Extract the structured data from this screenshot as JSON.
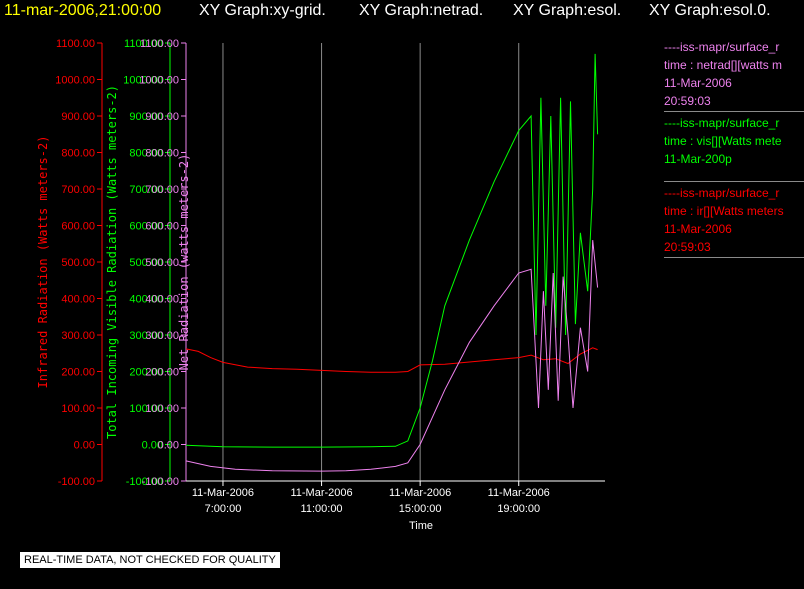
{
  "header": {
    "timestamp": "11-mar-2006,21:00:00",
    "graphs": [
      "XY Graph:xy-grid.",
      "XY Graph:netrad.",
      "XY Graph:esol.",
      "XY Graph:esol.0."
    ]
  },
  "colors": {
    "background": "#000000",
    "timestamp": "#ffff00",
    "titles": "#ffffff",
    "ir": "#ff0000",
    "vis": "#00ff00",
    "net": "#ee82ee",
    "grid": "#8a8a8a"
  },
  "chart_data": {
    "type": "line",
    "xlabel": "Time",
    "x_ticks": [
      [
        "11-Mar-2006",
        "7:00:00"
      ],
      [
        "11-Mar-2006",
        "11:00:00"
      ],
      [
        "11-Mar-2006",
        "15:00:00"
      ],
      [
        "11-Mar-2006",
        "19:00:00"
      ]
    ],
    "x_unit": "hours since 11-Mar-2006 00:00",
    "x_tick_hours": [
      7,
      11,
      15,
      19
    ],
    "xlim": [
      5.5,
      22.5
    ],
    "y_ticks": [
      "-100.00",
      "0.00",
      "100.00",
      "200.00",
      "300.00",
      "400.00",
      "500.00",
      "600.00",
      "700.00",
      "800.00",
      "900.00",
      "1000.00",
      "1100.00"
    ],
    "ylim": [
      -100,
      1100
    ],
    "grid": true,
    "axes": [
      {
        "label": "Infrared Radiation (Watts meters-2)",
        "color": "ir"
      },
      {
        "label": "Total Incoming Visible Radiation (Watts meters-2)",
        "color": "vis"
      },
      {
        "label": "Net Radiation (watts meters-2)",
        "color": "net"
      }
    ],
    "series": [
      {
        "name": "ir",
        "color": "ir",
        "points": [
          [
            5.5,
            262
          ],
          [
            6,
            255
          ],
          [
            6.5,
            238
          ],
          [
            7,
            225
          ],
          [
            8,
            212
          ],
          [
            9,
            208
          ],
          [
            10,
            206
          ],
          [
            11,
            203
          ],
          [
            12,
            200
          ],
          [
            13,
            198
          ],
          [
            14,
            198
          ],
          [
            14.5,
            200
          ],
          [
            15,
            218
          ],
          [
            16,
            220
          ],
          [
            17,
            226
          ],
          [
            18,
            232
          ],
          [
            19,
            238
          ],
          [
            19.5,
            245
          ],
          [
            20,
            232
          ],
          [
            20.5,
            235
          ],
          [
            21,
            222
          ],
          [
            21.5,
            248
          ],
          [
            22,
            265
          ],
          [
            22.2,
            260
          ]
        ]
      },
      {
        "name": "vis",
        "color": "vis",
        "points": [
          [
            5.5,
            -2
          ],
          [
            7,
            -6
          ],
          [
            9,
            -7
          ],
          [
            11,
            -7
          ],
          [
            13,
            -6
          ],
          [
            14,
            -5
          ],
          [
            14.5,
            10
          ],
          [
            15,
            100
          ],
          [
            15.5,
            230
          ],
          [
            16,
            380
          ],
          [
            17,
            560
          ],
          [
            18,
            720
          ],
          [
            19,
            860
          ],
          [
            19.5,
            900
          ],
          [
            19.7,
            300
          ],
          [
            19.9,
            950
          ],
          [
            20.1,
            380
          ],
          [
            20.3,
            900
          ],
          [
            20.5,
            320
          ],
          [
            20.7,
            950
          ],
          [
            20.9,
            300
          ],
          [
            21.1,
            940
          ],
          [
            21.3,
            330
          ],
          [
            21.5,
            580
          ],
          [
            21.8,
            420
          ],
          [
            22.0,
            700
          ],
          [
            22.1,
            1070
          ],
          [
            22.2,
            850
          ]
        ]
      },
      {
        "name": "net",
        "color": "net",
        "points": [
          [
            5.5,
            -45
          ],
          [
            6.5,
            -60
          ],
          [
            7.5,
            -68
          ],
          [
            9,
            -72
          ],
          [
            11,
            -73
          ],
          [
            12,
            -72
          ],
          [
            13,
            -68
          ],
          [
            14,
            -60
          ],
          [
            14.5,
            -50
          ],
          [
            15,
            0
          ],
          [
            16,
            150
          ],
          [
            17,
            280
          ],
          [
            18,
            380
          ],
          [
            19,
            470
          ],
          [
            19.5,
            480
          ],
          [
            19.8,
            100
          ],
          [
            20.0,
            420
          ],
          [
            20.2,
            150
          ],
          [
            20.4,
            470
          ],
          [
            20.6,
            120
          ],
          [
            20.8,
            460
          ],
          [
            21.0,
            300
          ],
          [
            21.2,
            100
          ],
          [
            21.5,
            320
          ],
          [
            21.8,
            200
          ],
          [
            22.0,
            560
          ],
          [
            22.2,
            430
          ]
        ]
      }
    ]
  },
  "legend": [
    {
      "color": "net",
      "lines": [
        "----iss-mapr/surface_r",
        "time : netrad[][watts m",
        "11-Mar-2006",
        "20:59:03"
      ]
    },
    {
      "color": "vis",
      "lines": [
        "----iss-mapr/surface_r",
        "time : vis[][Watts mete",
        "11-Mar-200p"
      ]
    },
    {
      "color": "ir",
      "lines": [
        "----iss-mapr/surface_r",
        "time : ir[][Watts meters",
        "11-Mar-2006",
        "20:59:03"
      ]
    }
  ],
  "note": "REAL-TIME DATA, NOT CHECKED FOR QUALITY"
}
